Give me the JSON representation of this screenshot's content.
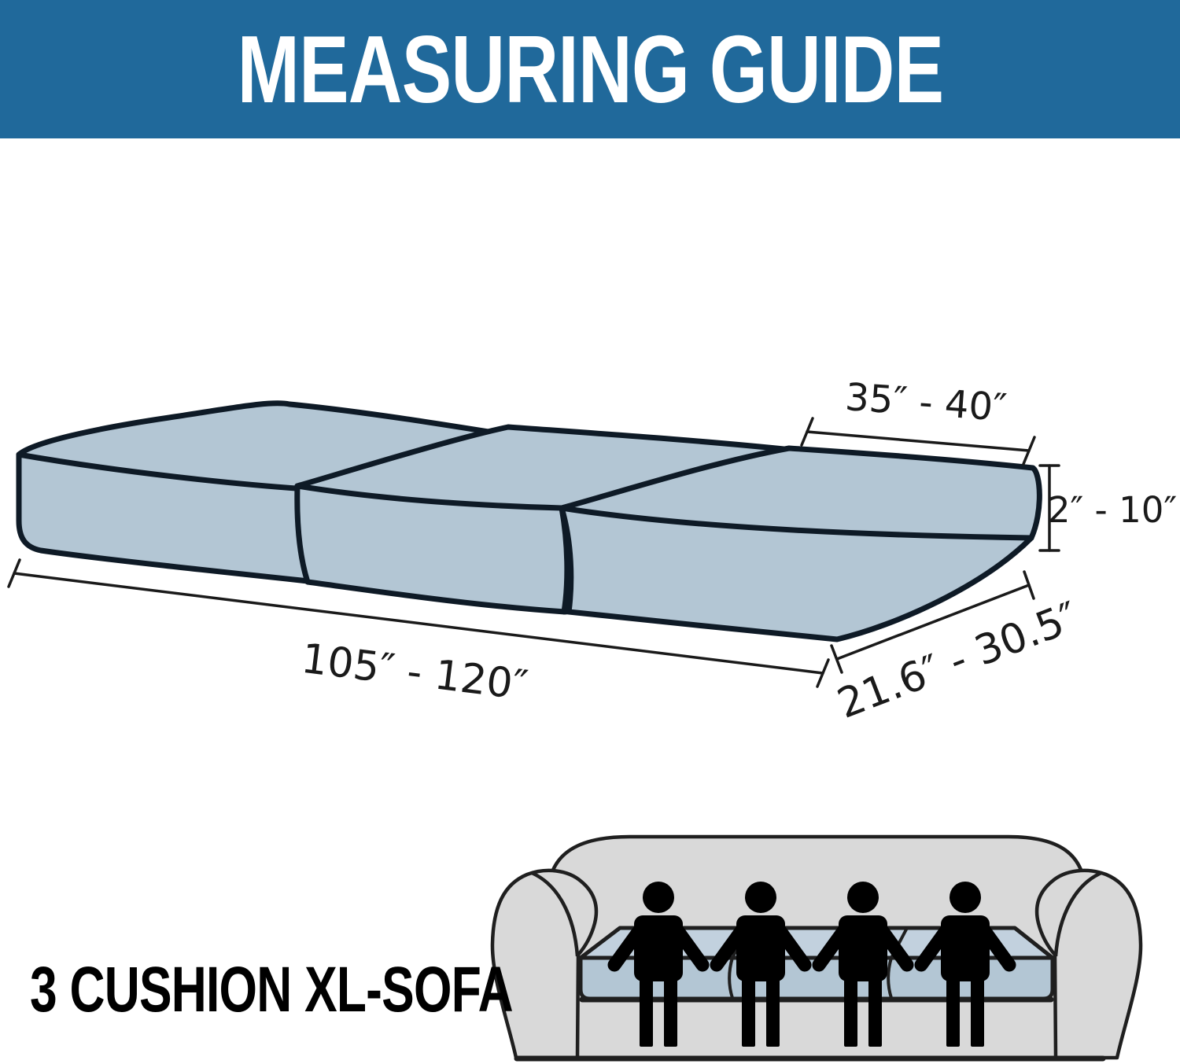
{
  "header": {
    "title": "MEASURING GUIDE"
  },
  "diagram": {
    "dimensions": {
      "seat_width": "35″ - 40″",
      "thickness": "2″ - 10″",
      "seat_depth": "21.6″ - 30.5″",
      "total_width": "105″ - 120″"
    },
    "cushion_count": 3
  },
  "footer": {
    "label": "3 CUSHION XL-SOFA",
    "sofa": {
      "capacity_persons": 4,
      "cushion_count": 3
    }
  },
  "colors": {
    "page_bg": "#FFFFFF",
    "header_bg": "#20699B",
    "title_color": "#FFFFFF",
    "label_color": "#000000",
    "cushion_fill": "#B3C6D4",
    "outline": "#0E1A26",
    "dim_color": "#1A1A1A",
    "sofa_body": "#D9D9D9",
    "sofa_outline": "#1F1F1F",
    "mini_cushion_top": "#C2D1DE",
    "mini_cushion_front": "#B3C6D4",
    "person": "#000000"
  }
}
